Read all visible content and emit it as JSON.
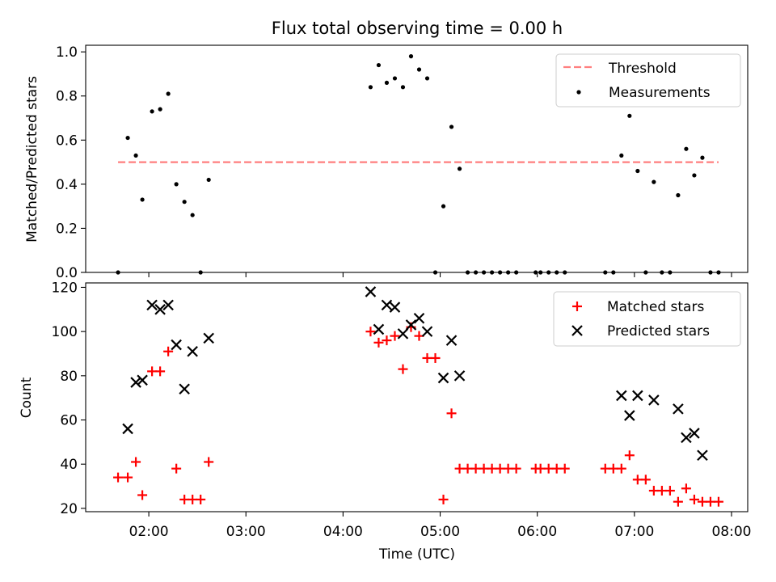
{
  "chart_data": [
    {
      "type": "scatter",
      "title": "Flux total observing time = 0.00 h",
      "xlabel": "",
      "ylabel": "Matched/Predicted stars",
      "xlim": [
        "01:21",
        "08:10"
      ],
      "ylim": [
        0,
        1.03
      ],
      "yticks": [
        "0.0",
        "0.2",
        "0.4",
        "0.6",
        "0.8",
        "1.0"
      ],
      "grid": false,
      "legend_position": "top-right",
      "legend": [
        "Threshold",
        "Measurements"
      ],
      "threshold": {
        "name": "Threshold",
        "y": 0.5,
        "x_start": "01:41",
        "x_end": "07:52",
        "color": "#ff7f7f"
      },
      "series": [
        {
          "name": "Measurements",
          "color": "#000000",
          "points": [
            [
              "01:41",
              0.0
            ],
            [
              "01:47",
              0.61
            ],
            [
              "01:52",
              0.53
            ],
            [
              "01:56",
              0.33
            ],
            [
              "02:02",
              0.73
            ],
            [
              "02:07",
              0.74
            ],
            [
              "02:12",
              0.81
            ],
            [
              "02:17",
              0.4
            ],
            [
              "02:22",
              0.32
            ],
            [
              "02:27",
              0.26
            ],
            [
              "02:32",
              0.0
            ],
            [
              "02:37",
              0.42
            ],
            [
              "04:17",
              0.84
            ],
            [
              "04:22",
              0.94
            ],
            [
              "04:27",
              0.86
            ],
            [
              "04:32",
              0.88
            ],
            [
              "04:37",
              0.84
            ],
            [
              "04:42",
              0.98
            ],
            [
              "04:47",
              0.92
            ],
            [
              "04:52",
              0.88
            ],
            [
              "04:57",
              0.0
            ],
            [
              "05:02",
              0.3
            ],
            [
              "05:07",
              0.66
            ],
            [
              "05:12",
              0.47
            ],
            [
              "05:17",
              0.0
            ],
            [
              "05:22",
              0.0
            ],
            [
              "05:27",
              0.0
            ],
            [
              "05:32",
              0.0
            ],
            [
              "05:37",
              0.0
            ],
            [
              "05:42",
              0.0
            ],
            [
              "05:47",
              0.0
            ],
            [
              "05:59",
              0.0
            ],
            [
              "06:02",
              0.0
            ],
            [
              "06:07",
              0.0
            ],
            [
              "06:12",
              0.0
            ],
            [
              "06:17",
              0.0
            ],
            [
              "06:42",
              0.0
            ],
            [
              "06:47",
              0.0
            ],
            [
              "06:52",
              0.53
            ],
            [
              "06:57",
              0.71
            ],
            [
              "07:02",
              0.46
            ],
            [
              "07:07",
              0.0
            ],
            [
              "07:12",
              0.41
            ],
            [
              "07:17",
              0.0
            ],
            [
              "07:22",
              0.0
            ],
            [
              "07:27",
              0.35
            ],
            [
              "07:32",
              0.56
            ],
            [
              "07:37",
              0.44
            ],
            [
              "07:42",
              0.52
            ],
            [
              "07:47",
              0.0
            ],
            [
              "07:52",
              0.0
            ]
          ]
        }
      ]
    },
    {
      "type": "scatter",
      "title": "",
      "xlabel": "Time (UTC)",
      "ylabel": "Count",
      "xlim": [
        "01:21",
        "08:10"
      ],
      "ylim": [
        18.5,
        122
      ],
      "yticks": [
        "20",
        "40",
        "60",
        "80",
        "100",
        "120"
      ],
      "xticks": [
        "02:00",
        "03:00",
        "04:00",
        "05:00",
        "06:00",
        "07:00",
        "08:00"
      ],
      "grid": false,
      "legend_position": "top-right",
      "legend": [
        "Matched stars",
        "Predicted stars"
      ],
      "series": [
        {
          "name": "Matched stars",
          "marker": "+",
          "color": "#ff0000",
          "points": [
            [
              "01:41",
              34
            ],
            [
              "01:47",
              34
            ],
            [
              "01:52",
              41
            ],
            [
              "01:56",
              26
            ],
            [
              "02:02",
              82
            ],
            [
              "02:07",
              82
            ],
            [
              "02:12",
              91
            ],
            [
              "02:17",
              38
            ],
            [
              "02:22",
              24
            ],
            [
              "02:27",
              24
            ],
            [
              "02:32",
              24
            ],
            [
              "02:37",
              41
            ],
            [
              "04:17",
              100
            ],
            [
              "04:22",
              95
            ],
            [
              "04:27",
              96
            ],
            [
              "04:32",
              98
            ],
            [
              "04:37",
              83
            ],
            [
              "04:42",
              102
            ],
            [
              "04:47",
              98
            ],
            [
              "04:52",
              88
            ],
            [
              "04:57",
              88
            ],
            [
              "05:02",
              24
            ],
            [
              "05:07",
              63
            ],
            [
              "05:12",
              38
            ],
            [
              "05:17",
              38
            ],
            [
              "05:22",
              38
            ],
            [
              "05:27",
              38
            ],
            [
              "05:32",
              38
            ],
            [
              "05:37",
              38
            ],
            [
              "05:42",
              38
            ],
            [
              "05:47",
              38
            ],
            [
              "05:59",
              38
            ],
            [
              "06:02",
              38
            ],
            [
              "06:07",
              38
            ],
            [
              "06:12",
              38
            ],
            [
              "06:17",
              38
            ],
            [
              "06:42",
              38
            ],
            [
              "06:47",
              38
            ],
            [
              "06:52",
              38
            ],
            [
              "06:57",
              44
            ],
            [
              "07:02",
              33
            ],
            [
              "07:07",
              33
            ],
            [
              "07:12",
              28
            ],
            [
              "07:17",
              28
            ],
            [
              "07:22",
              28
            ],
            [
              "07:27",
              23
            ],
            [
              "07:32",
              29
            ],
            [
              "07:37",
              24
            ],
            [
              "07:42",
              23
            ],
            [
              "07:47",
              23
            ],
            [
              "07:52",
              23
            ]
          ]
        },
        {
          "name": "Predicted stars",
          "marker": "x",
          "color": "#000000",
          "points": [
            [
              "01:47",
              56
            ],
            [
              "01:52",
              77
            ],
            [
              "01:56",
              78
            ],
            [
              "02:02",
              112
            ],
            [
              "02:07",
              110
            ],
            [
              "02:12",
              112
            ],
            [
              "02:17",
              94
            ],
            [
              "02:22",
              74
            ],
            [
              "02:27",
              91
            ],
            [
              "02:37",
              97
            ],
            [
              "04:17",
              118
            ],
            [
              "04:22",
              101
            ],
            [
              "04:27",
              112
            ],
            [
              "04:32",
              111
            ],
            [
              "04:37",
              99
            ],
            [
              "04:42",
              103
            ],
            [
              "04:47",
              106
            ],
            [
              "04:52",
              100
            ],
            [
              "05:02",
              79
            ],
            [
              "05:07",
              96
            ],
            [
              "05:12",
              80
            ],
            [
              "06:52",
              71
            ],
            [
              "06:57",
              62
            ],
            [
              "07:02",
              71
            ],
            [
              "07:12",
              69
            ],
            [
              "07:27",
              65
            ],
            [
              "07:32",
              52
            ],
            [
              "07:37",
              54
            ],
            [
              "07:42",
              44
            ]
          ]
        }
      ]
    }
  ]
}
